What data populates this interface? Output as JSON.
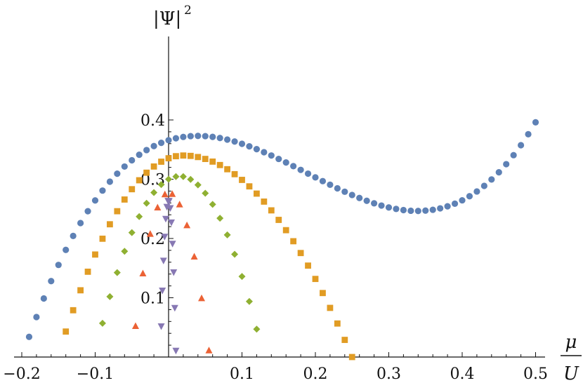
{
  "chart_data": {
    "type": "scatter",
    "title": "",
    "xlabel": {
      "numerator": "μ",
      "denominator": "U"
    },
    "ylabel": {
      "base": "|Ψ|",
      "exponent": "2"
    },
    "xlim": [
      -0.2,
      0.5
    ],
    "ylim": [
      0,
      0.4
    ],
    "xticks": [
      -0.2,
      -0.1,
      0.1,
      0.2,
      0.3,
      0.4,
      0.5
    ],
    "xtick_labels": [
      "−0.2",
      "−0.1",
      "0.1",
      "0.2",
      "0.3",
      "0.4",
      "0.5"
    ],
    "yticks": [
      0.1,
      0.2,
      0.3,
      0.4
    ],
    "ytick_labels": [
      "0.1",
      "0.2",
      "0.3",
      "0.4"
    ],
    "grid": false,
    "legend": "none",
    "series": [
      {
        "marker": "circle",
        "color": "#5E81B5",
        "x_range": [
          -0.19,
          0.5
        ],
        "points": 70,
        "fit": "cubic",
        "fit_anchors": [
          [
            -0.19,
            0.034
          ],
          [
            0.045,
            0.373
          ],
          [
            0.35,
            0.247
          ],
          [
            0.5,
            0.396
          ]
        ]
      },
      {
        "marker": "square",
        "color": "#E19C24",
        "x_range": [
          -0.14,
          0.25
        ],
        "points": 40,
        "fit": "peak",
        "peak": [
          0.02,
          0.34
        ],
        "edge_values": [
          0.043,
          0.0
        ]
      },
      {
        "marker": "diamond",
        "color": "#8FB032",
        "x_range": [
          -0.09,
          0.12
        ],
        "points": 22,
        "fit": "peak",
        "peak": [
          0.015,
          0.305
        ],
        "edge_values": [
          0.057,
          0.047
        ]
      },
      {
        "marker": "triangle-up",
        "color": "#EB6235",
        "x_range": [
          -0.045,
          0.055
        ],
        "points": 11,
        "fit": "peak",
        "peak": [
          0.0,
          0.277
        ],
        "edge_values": [
          0.052,
          0.011
        ]
      },
      {
        "marker": "triangle-down",
        "color": "#8778B3",
        "x_range": [
          -0.01,
          0.01
        ],
        "points": 14,
        "fit": "peak",
        "peak": [
          0.0,
          0.265
        ],
        "edge_values": [
          0.052,
          0.011
        ]
      }
    ]
  }
}
